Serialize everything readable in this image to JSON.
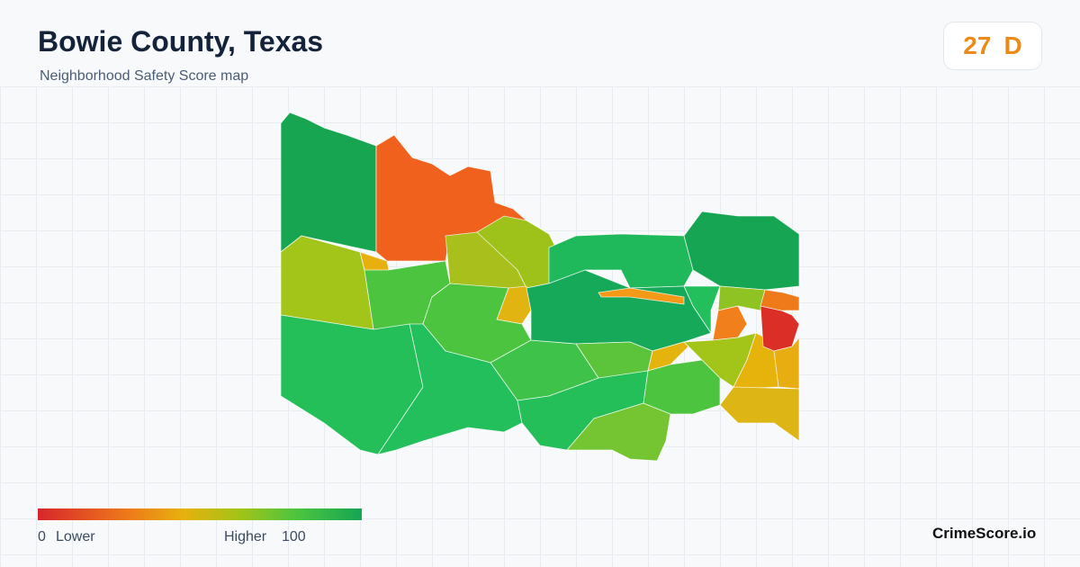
{
  "header": {
    "title": "Bowie County, Texas",
    "subtitle": "Neighborhood Safety Score map"
  },
  "score": {
    "value": 27,
    "grade": "D"
  },
  "legend": {
    "min": 0,
    "min_label": "Lower",
    "max_label": "Higher",
    "max": 100
  },
  "brand": "CrimeScore.io"
}
